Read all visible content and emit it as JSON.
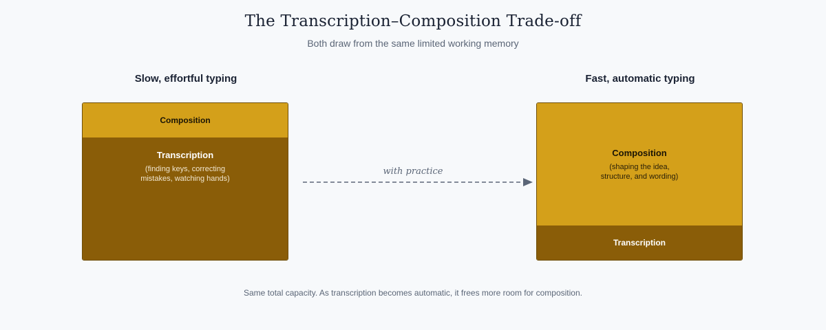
{
  "title": "The Transcription–Composition Trade-off",
  "subtitle": "Both draw from the same limited working memory",
  "left_panel": {
    "heading": "Slow, effortful typing",
    "composition": {
      "label": "Composition",
      "share": 0.22
    },
    "transcription": {
      "label": "Transcription",
      "description_line1": "(finding keys, correcting",
      "description_line2": "mistakes, watching hands)",
      "share": 0.78
    }
  },
  "arrow": {
    "label": "with practice"
  },
  "right_panel": {
    "heading": "Fast, automatic typing",
    "composition": {
      "label": "Composition",
      "description_line1": "(shaping the idea,",
      "description_line2": "structure, and wording)",
      "share": 0.78
    },
    "transcription": {
      "label": "Transcription",
      "share": 0.22
    }
  },
  "footnote": "Same total capacity. As transcription becomes automatic, it frees more room for composition.",
  "colors": {
    "composition": "#d4a01a",
    "transcription": "#8a5d08",
    "background": "#f7f9fb",
    "arrow": "#5b6677"
  }
}
